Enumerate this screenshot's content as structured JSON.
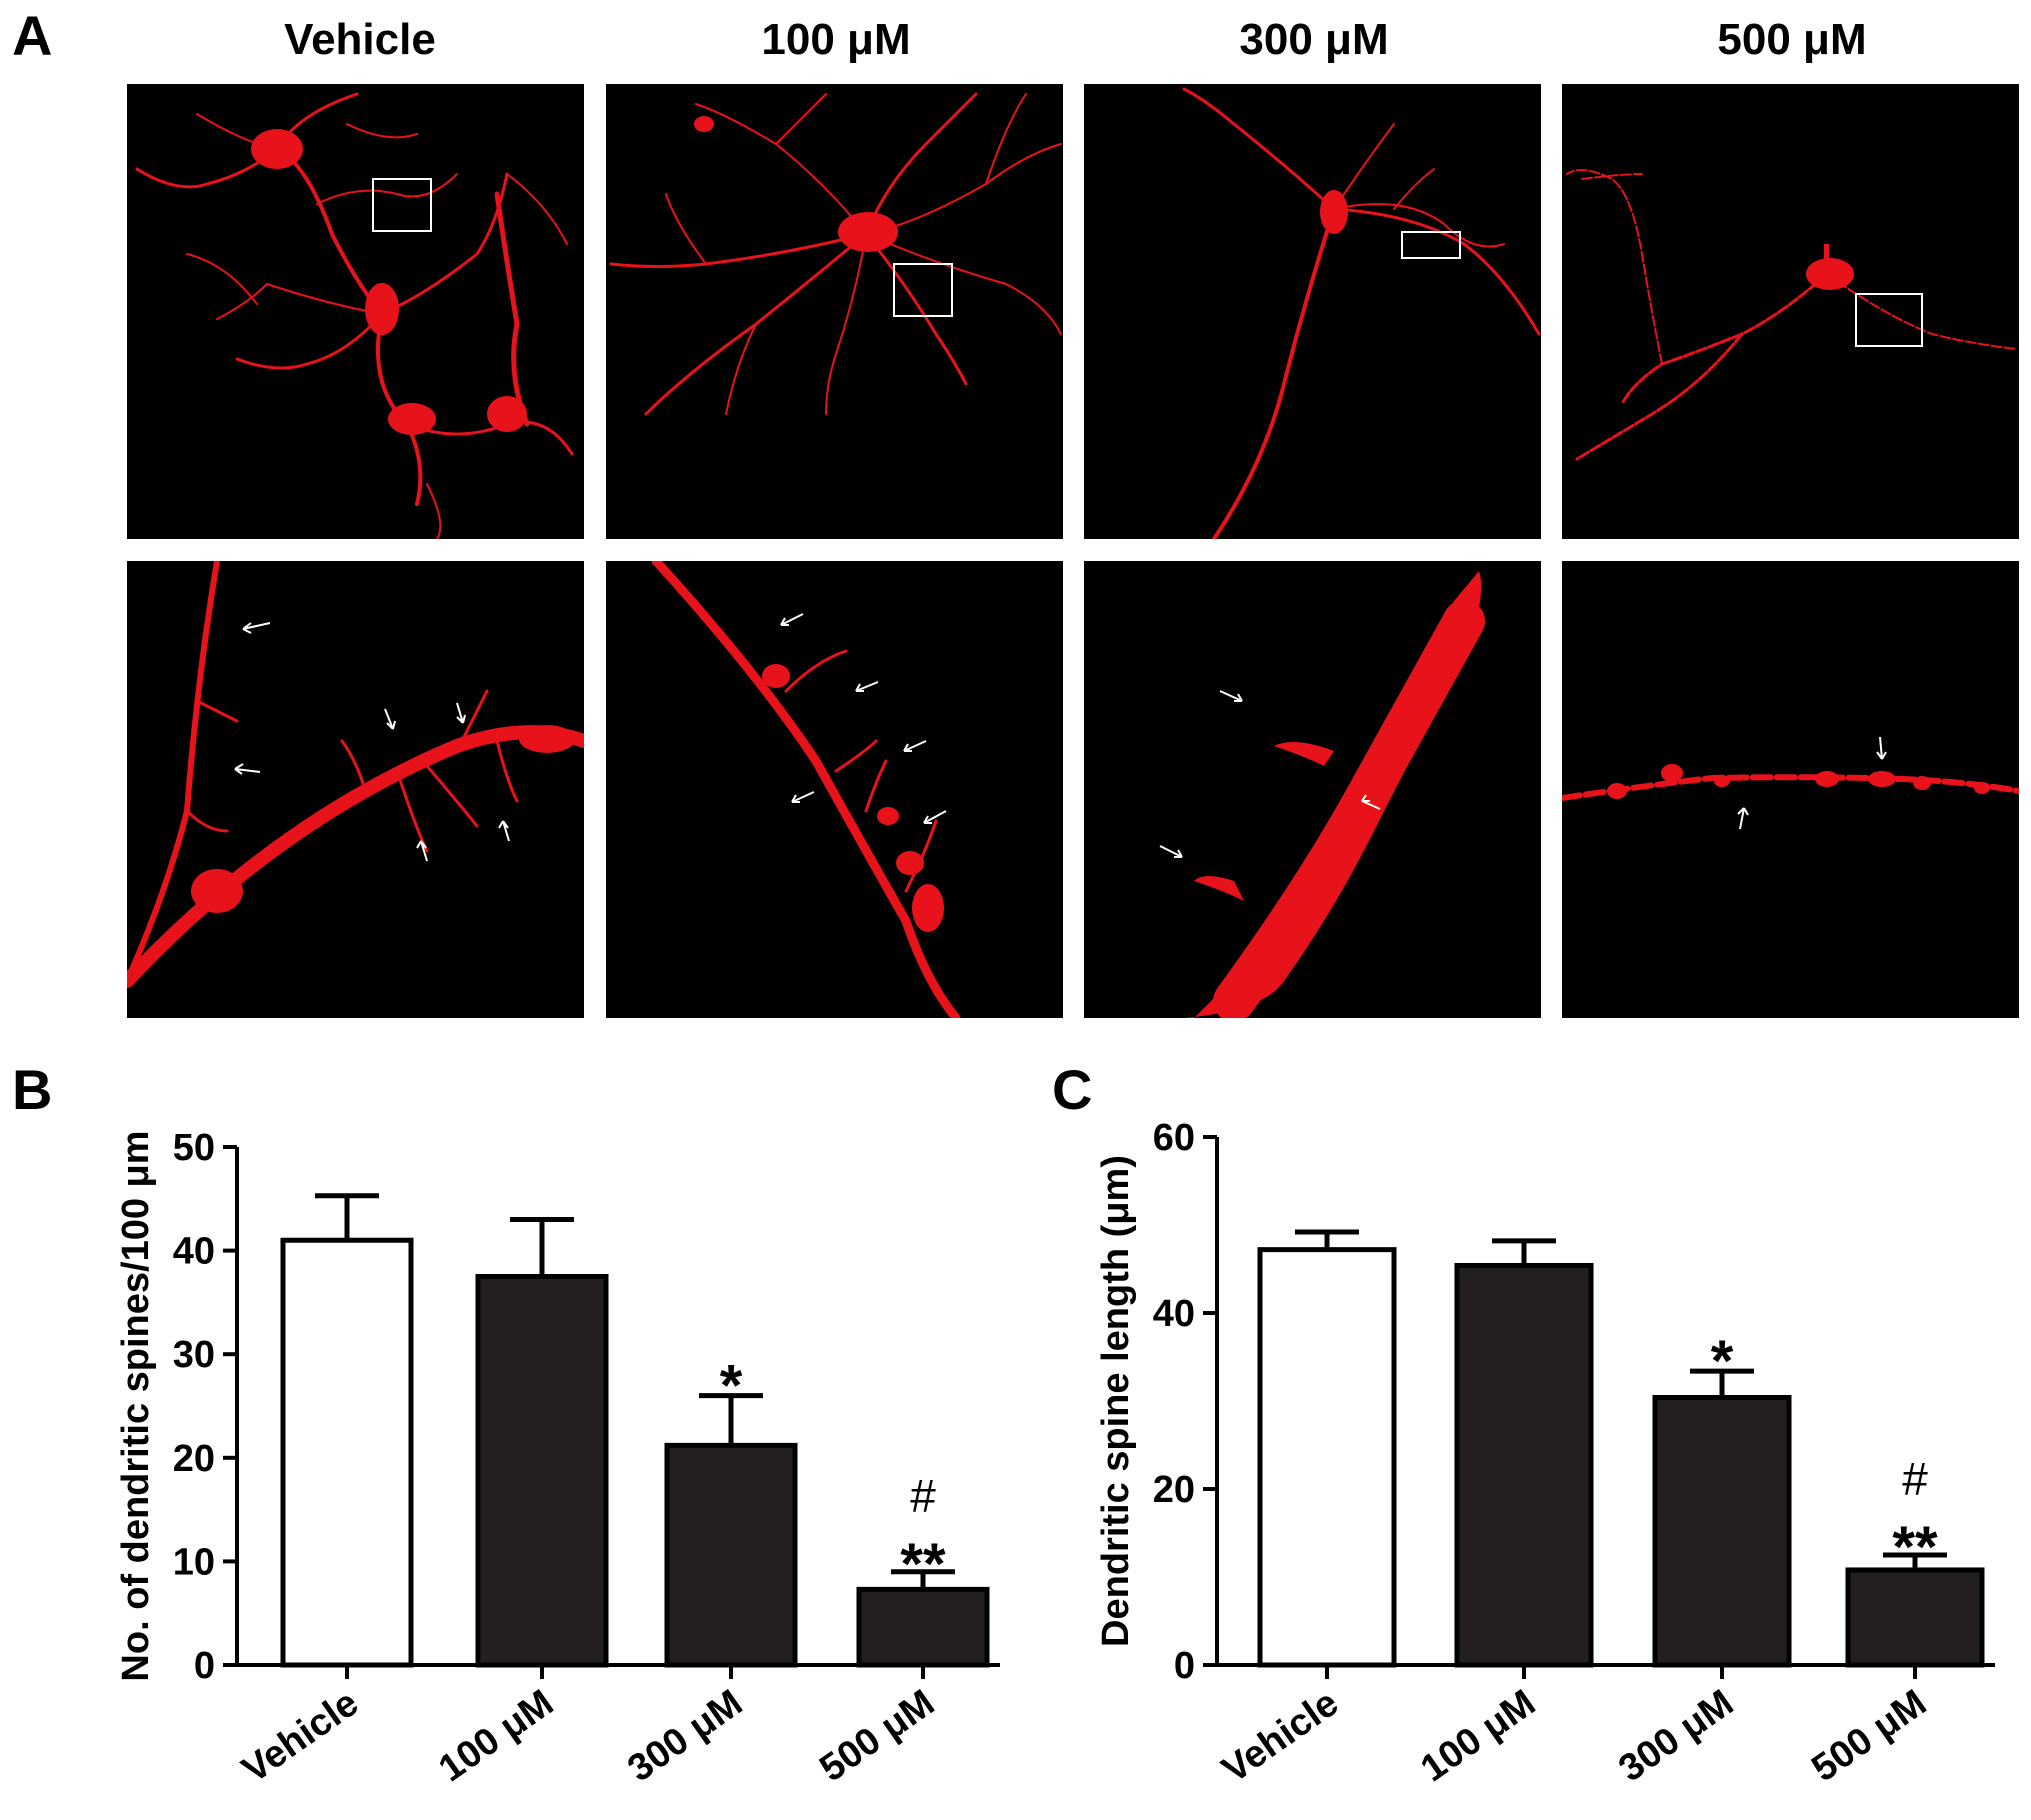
{
  "panel_labels": {
    "a": "A",
    "b": "B",
    "c": "C"
  },
  "column_titles": [
    "Vehicle",
    "100 μM",
    "300 μM",
    "500 μM"
  ],
  "colors": {
    "stain": "#e8121a",
    "bar_fill": "#231f20",
    "background": "#000000"
  },
  "chart_data": [
    {
      "type": "bar",
      "categories": [
        "Vehicle",
        "100 μM",
        "300 μM",
        "500 μM"
      ],
      "values": [
        41,
        37.5,
        21.2,
        7.3
      ],
      "errors": [
        4.3,
        5.5,
        4.8,
        1.7
      ],
      "fills": [
        "white",
        "dark",
        "dark",
        "dark"
      ],
      "annotations": [
        "",
        "",
        "*",
        "**"
      ],
      "annotations_top": [
        "",
        "",
        "",
        "#"
      ],
      "ylabel": "No. of dendritic spines/100 μm",
      "ylim": [
        0,
        50
      ],
      "yticks": [
        "0",
        "10",
        "20",
        "30",
        "40",
        "50"
      ],
      "grid": false
    },
    {
      "type": "bar",
      "categories": [
        "Vehicle",
        "100 μM",
        "300 μM",
        "500 μM"
      ],
      "values": [
        47.2,
        45.4,
        30.4,
        10.8
      ],
      "errors": [
        2.0,
        2.8,
        3.0,
        1.7
      ],
      "fills": [
        "white",
        "dark",
        "dark",
        "dark"
      ],
      "annotations": [
        "",
        "",
        "*",
        "**"
      ],
      "annotations_top": [
        "",
        "",
        "",
        "#"
      ],
      "ylabel": "Dendritic spine length (μm)",
      "ylim": [
        0,
        60
      ],
      "yticks": [
        "0",
        "20",
        "40",
        "60"
      ],
      "grid": false
    }
  ]
}
